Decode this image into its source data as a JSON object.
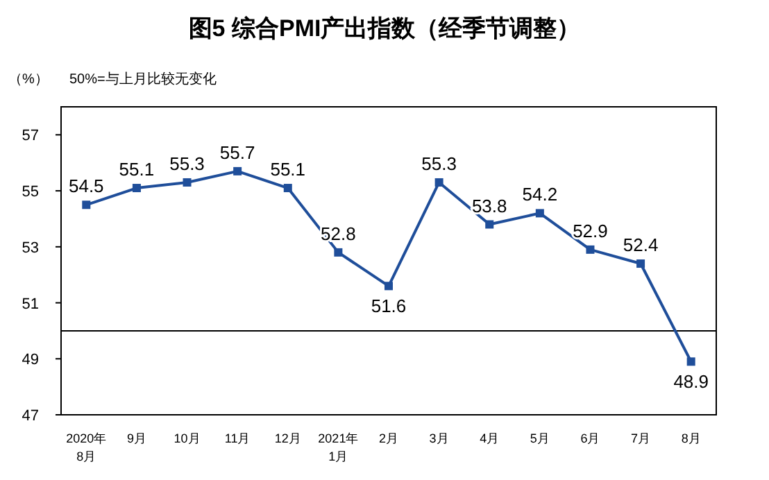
{
  "chart_data": {
    "type": "line",
    "title": "图5  综合PMI产出指数（经季节调整）",
    "ylabel": "（%）",
    "annotations": [
      "50%=与上月比较无变化"
    ],
    "categories": [
      "2020年\n8月",
      "9月",
      "10月",
      "11月",
      "12月",
      "2021年\n1月",
      "2月",
      "3月",
      "4月",
      "5月",
      "6月",
      "7月",
      "8月"
    ],
    "series": [
      {
        "color": "#1f4e9a",
        "values": [
          54.5,
          55.1,
          55.3,
          55.7,
          55.1,
          52.8,
          51.6,
          55.3,
          53.8,
          54.2,
          52.9,
          52.4,
          48.9
        ]
      }
    ],
    "ylim": [
      47,
      58
    ],
    "yticks": [
      47,
      49,
      51,
      53,
      55,
      57
    ],
    "ref_lines": [
      {
        "axis": "y",
        "value": 50,
        "color": "#000000"
      }
    ],
    "marker": "square",
    "data_labels": true,
    "grid": false
  }
}
